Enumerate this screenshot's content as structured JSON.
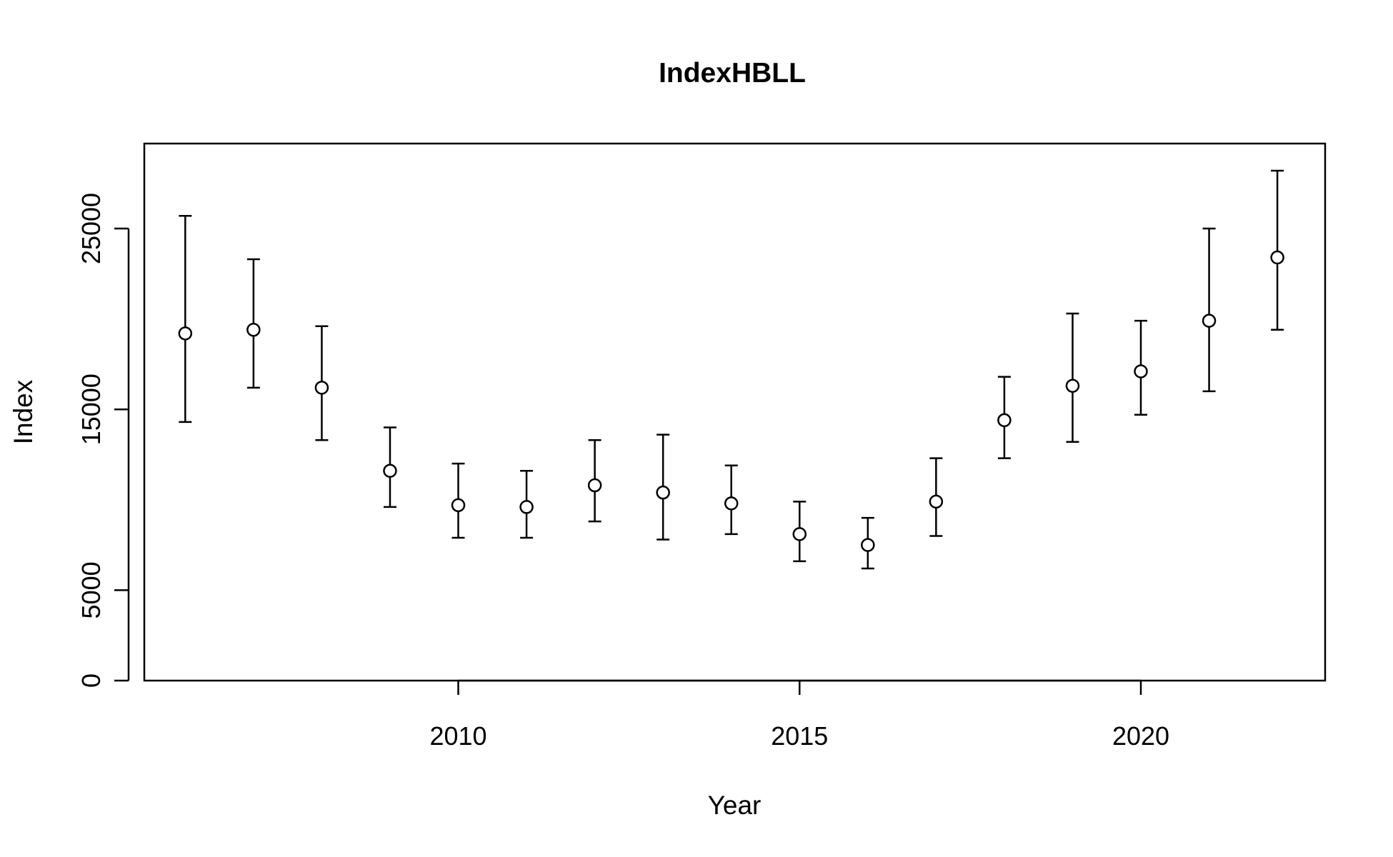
{
  "chart_data": {
    "type": "scatter",
    "title": "IndexHBLL",
    "xlabel": "Year",
    "ylabel": "Index",
    "xlim": [
      2005.4,
      2022.7
    ],
    "ylim": [
      0,
      29700
    ],
    "x_ticks": [
      2010,
      2015,
      2020
    ],
    "y_ticks": [
      0,
      5000,
      15000,
      25000
    ],
    "grid": false,
    "error_bars": true,
    "points": [
      {
        "x": 2006,
        "y": 19200,
        "lower": 14300,
        "upper": 25700
      },
      {
        "x": 2007,
        "y": 19400,
        "lower": 16200,
        "upper": 23300
      },
      {
        "x": 2008,
        "y": 16200,
        "lower": 13300,
        "upper": 19600
      },
      {
        "x": 2009,
        "y": 11600,
        "lower": 9600,
        "upper": 14000
      },
      {
        "x": 2010,
        "y": 9700,
        "lower": 7900,
        "upper": 12000
      },
      {
        "x": 2011,
        "y": 9600,
        "lower": 7900,
        "upper": 11600
      },
      {
        "x": 2012,
        "y": 10800,
        "lower": 8800,
        "upper": 13300
      },
      {
        "x": 2013,
        "y": 10400,
        "lower": 7800,
        "upper": 13600
      },
      {
        "x": 2014,
        "y": 9800,
        "lower": 8100,
        "upper": 11900
      },
      {
        "x": 2015,
        "y": 8100,
        "lower": 6600,
        "upper": 9900
      },
      {
        "x": 2016,
        "y": 7500,
        "lower": 6200,
        "upper": 9000
      },
      {
        "x": 2017,
        "y": 9900,
        "lower": 8000,
        "upper": 12300
      },
      {
        "x": 2018,
        "y": 14400,
        "lower": 12300,
        "upper": 16800
      },
      {
        "x": 2019,
        "y": 16300,
        "lower": 13200,
        "upper": 20300
      },
      {
        "x": 2020,
        "y": 17100,
        "lower": 14700,
        "upper": 19900
      },
      {
        "x": 2021,
        "y": 19900,
        "lower": 16000,
        "upper": 25000
      },
      {
        "x": 2022,
        "y": 23400,
        "lower": 19400,
        "upper": 28200
      }
    ]
  }
}
